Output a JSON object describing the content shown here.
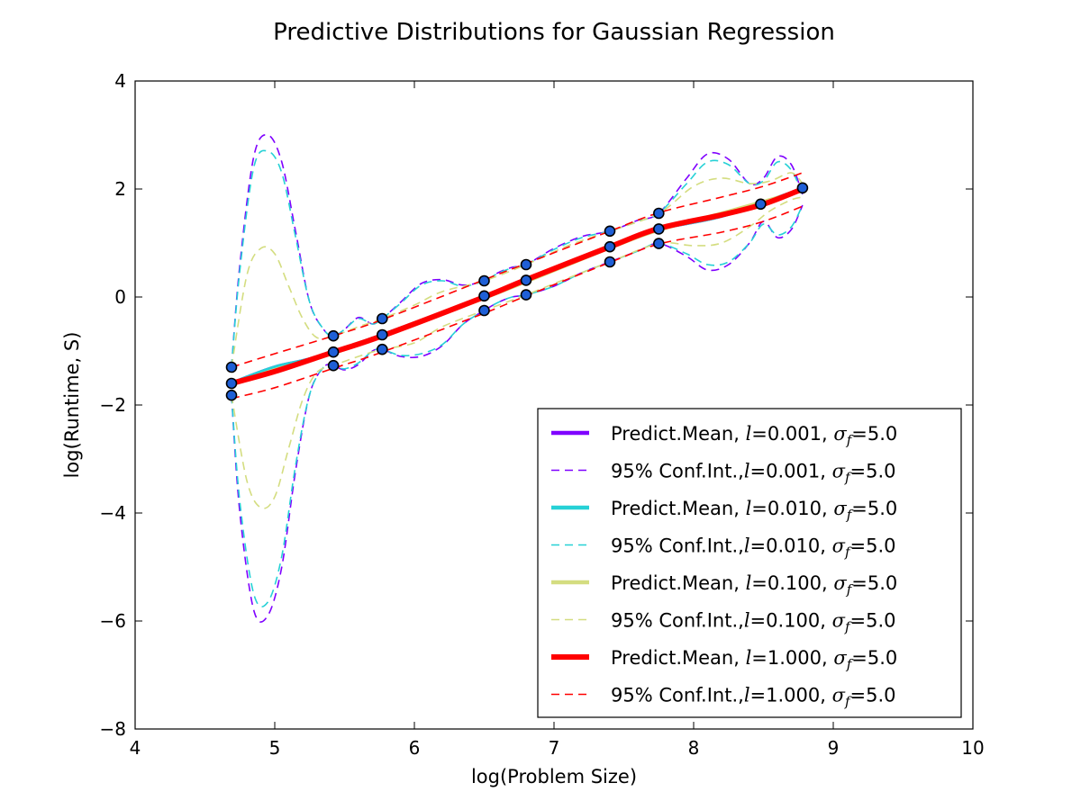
{
  "chart_data": {
    "type": "line",
    "title": "Predictive Distributions for Gaussian Regression",
    "xlabel": "log(Problem Size)",
    "ylabel": "log(Runtime, S)",
    "xlim": [
      4,
      10
    ],
    "ylim": [
      -8,
      4
    ],
    "xticks": [
      4,
      5,
      6,
      7,
      8,
      9,
      10
    ],
    "xtick_labels": [
      "4",
      "5",
      "6",
      "7",
      "8",
      "9",
      "10"
    ],
    "yticks": [
      -8,
      -6,
      -4,
      -2,
      0,
      2,
      4
    ],
    "ytick_labels": [
      "−8",
      "−6",
      "−4",
      "−2",
      "0",
      "2",
      "4"
    ],
    "grid": false,
    "legend_position": "lower-right",
    "observations": {
      "x": [
        4.69,
        4.69,
        4.69,
        5.42,
        5.42,
        5.42,
        5.77,
        5.77,
        5.77,
        6.5,
        6.5,
        6.5,
        6.8,
        6.8,
        6.8,
        7.4,
        7.4,
        7.4,
        7.75,
        7.75,
        7.75,
        8.48,
        8.78
      ],
      "y": [
        -1.3,
        -1.6,
        -1.82,
        -0.72,
        -1.02,
        -1.27,
        -0.4,
        -0.7,
        -0.97,
        0.3,
        0.02,
        -0.25,
        0.6,
        0.31,
        0.04,
        1.22,
        0.93,
        0.65,
        1.55,
        1.26,
        0.99,
        1.72,
        2.02
      ]
    },
    "series": [
      {
        "name": "Predict.Mean, l=0.001, σf=5.0",
        "legend_prefix": "Predict.Mean, ",
        "legend_mid": "=0.001, ",
        "legend_suffix": "=5.0",
        "color": "#7f00ff",
        "style": "solid",
        "x": [
          4.69,
          5.0,
          5.42,
          6.5,
          7.4,
          7.75,
          8.2,
          8.78
        ],
        "y": [
          -1.6,
          -1.3,
          -1.02,
          0.0,
          0.93,
          1.26,
          1.5,
          2.0
        ]
      },
      {
        "name": "95% Conf.Int.,l=0.001, σf=5.0",
        "legend_prefix": "95% Conf.Int.,",
        "legend_mid": "=0.001, ",
        "legend_suffix": "=5.0",
        "color": "#7f00ff",
        "style": "dashed",
        "upper": {
          "x": [
            4.69,
            4.75,
            4.85,
            4.95,
            5.05,
            5.15,
            5.25,
            5.35,
            5.42,
            5.5,
            5.6,
            5.7,
            5.77,
            5.9,
            6.05,
            6.2,
            6.35,
            6.5,
            6.6,
            6.7,
            6.8,
            7.0,
            7.2,
            7.4,
            7.6,
            7.75,
            7.95,
            8.1,
            8.25,
            8.4,
            8.5,
            8.6,
            8.7,
            8.78
          ],
          "y": [
            -1.3,
            0.6,
            2.6,
            3.0,
            2.5,
            1.2,
            -0.1,
            -0.6,
            -0.72,
            -0.6,
            -0.38,
            -0.5,
            -0.4,
            -0.1,
            0.25,
            0.32,
            0.22,
            0.3,
            0.45,
            0.55,
            0.6,
            0.9,
            1.12,
            1.22,
            1.42,
            1.55,
            2.2,
            2.65,
            2.55,
            2.1,
            2.2,
            2.6,
            2.45,
            1.9
          ]
        },
        "lower": {
          "x": [
            4.69,
            4.75,
            4.85,
            4.95,
            5.05,
            5.15,
            5.25,
            5.35,
            5.42,
            5.5,
            5.6,
            5.7,
            5.77,
            5.9,
            6.05,
            6.2,
            6.35,
            6.5,
            6.6,
            6.7,
            6.8,
            7.0,
            7.2,
            7.4,
            7.6,
            7.75,
            7.95,
            8.1,
            8.25,
            8.4,
            8.5,
            8.6,
            8.7,
            8.78
          ],
          "y": [
            -1.82,
            -4.0,
            -5.8,
            -5.9,
            -5.0,
            -3.2,
            -1.8,
            -1.3,
            -1.27,
            -1.35,
            -1.25,
            -1.0,
            -0.97,
            -1.1,
            -1.1,
            -0.9,
            -0.5,
            -0.25,
            -0.1,
            0.0,
            0.04,
            0.2,
            0.45,
            0.65,
            0.85,
            0.99,
            0.75,
            0.5,
            0.6,
            1.0,
            1.4,
            1.1,
            1.25,
            1.7
          ]
        }
      },
      {
        "name": "Predict.Mean, l=0.010, σf=5.0",
        "legend_prefix": "Predict.Mean, ",
        "legend_mid": "=0.010, ",
        "legend_suffix": "=5.0",
        "color": "#26d1d6",
        "style": "solid",
        "x": [
          4.69,
          5.0,
          5.42,
          6.5,
          7.4,
          7.75,
          8.2,
          8.78
        ],
        "y": [
          -1.6,
          -1.3,
          -1.02,
          0.0,
          0.93,
          1.26,
          1.5,
          2.0
        ]
      },
      {
        "name": "95% Conf.Int.,l=0.010, σf=5.0",
        "legend_prefix": "95% Conf.Int.,",
        "legend_mid": "=0.010, ",
        "legend_suffix": "=5.0",
        "color": "#26d1d6",
        "style": "dashed",
        "upper": {
          "x": [
            4.69,
            4.75,
            4.85,
            4.95,
            5.05,
            5.15,
            5.25,
            5.35,
            5.42,
            5.5,
            5.6,
            5.7,
            5.77,
            5.9,
            6.05,
            6.2,
            6.35,
            6.5,
            6.6,
            6.7,
            6.8,
            7.0,
            7.2,
            7.4,
            7.6,
            7.75,
            7.95,
            8.1,
            8.25,
            8.4,
            8.5,
            8.6,
            8.7,
            8.78
          ],
          "y": [
            -1.3,
            0.5,
            2.4,
            2.7,
            2.3,
            1.1,
            -0.1,
            -0.6,
            -0.72,
            -0.6,
            -0.4,
            -0.5,
            -0.4,
            -0.12,
            0.22,
            0.3,
            0.2,
            0.3,
            0.44,
            0.54,
            0.6,
            0.88,
            1.1,
            1.22,
            1.4,
            1.55,
            2.1,
            2.5,
            2.45,
            2.1,
            2.15,
            2.5,
            2.35,
            1.9
          ]
        },
        "lower": {
          "x": [
            4.69,
            4.75,
            4.85,
            4.95,
            5.05,
            5.15,
            5.25,
            5.35,
            5.42,
            5.5,
            5.6,
            5.7,
            5.77,
            5.9,
            6.05,
            6.2,
            6.35,
            6.5,
            6.6,
            6.7,
            6.8,
            7.0,
            7.2,
            7.4,
            7.6,
            7.75,
            7.95,
            8.1,
            8.25,
            8.4,
            8.5,
            8.6,
            8.7,
            8.78
          ],
          "y": [
            -1.82,
            -3.8,
            -5.5,
            -5.65,
            -4.8,
            -3.1,
            -1.8,
            -1.3,
            -1.27,
            -1.33,
            -1.22,
            -1.0,
            -0.97,
            -1.08,
            -1.05,
            -0.88,
            -0.5,
            -0.25,
            -0.1,
            0.0,
            0.04,
            0.2,
            0.45,
            0.65,
            0.85,
            0.99,
            0.8,
            0.6,
            0.65,
            1.0,
            1.35,
            1.15,
            1.3,
            1.7
          ]
        }
      },
      {
        "name": "Predict.Mean, l=0.100, σf=5.0",
        "legend_prefix": "Predict.Mean, ",
        "legend_mid": "=0.100, ",
        "legend_suffix": "=5.0",
        "color": "#d4dd80",
        "style": "solid",
        "x": [
          4.69,
          5.0,
          5.42,
          6.5,
          7.4,
          7.75,
          8.2,
          8.78
        ],
        "y": [
          -1.62,
          -1.35,
          -1.04,
          -0.02,
          0.91,
          1.24,
          1.55,
          1.97
        ]
      },
      {
        "name": "95% Conf.Int.,l=0.100, σf=5.0",
        "legend_prefix": "95% Conf.Int.,",
        "legend_mid": "=0.100, ",
        "legend_suffix": "=5.0",
        "color": "#d4dd80",
        "style": "dashed",
        "upper": {
          "x": [
            4.69,
            4.8,
            4.9,
            5.0,
            5.1,
            5.2,
            5.3,
            5.42,
            5.6,
            5.77,
            6.0,
            6.2,
            6.5,
            6.8,
            7.1,
            7.4,
            7.75,
            8.0,
            8.2,
            8.4,
            8.55,
            8.7,
            8.78
          ],
          "y": [
            -1.3,
            0.4,
            0.9,
            0.8,
            0.2,
            -0.4,
            -0.75,
            -0.72,
            -0.55,
            -0.4,
            -0.15,
            0.1,
            0.3,
            0.6,
            0.95,
            1.22,
            1.55,
            2.05,
            2.2,
            2.1,
            2.15,
            2.3,
            2.1
          ]
        },
        "lower": {
          "x": [
            4.69,
            4.8,
            4.9,
            5.0,
            5.1,
            5.2,
            5.3,
            5.42,
            5.6,
            5.77,
            6.0,
            6.2,
            6.5,
            6.8,
            7.1,
            7.4,
            7.75,
            8.0,
            8.2,
            8.4,
            8.55,
            8.7,
            8.78
          ],
          "y": [
            -1.82,
            -3.4,
            -3.9,
            -3.7,
            -2.8,
            -1.9,
            -1.4,
            -1.27,
            -1.1,
            -0.97,
            -0.85,
            -0.55,
            -0.25,
            0.04,
            0.35,
            0.65,
            0.99,
            0.95,
            1.0,
            1.3,
            1.6,
            1.8,
            1.85
          ]
        }
      },
      {
        "name": "Predict.Mean, l=1.000, σf=5.0",
        "legend_prefix": "Predict.Mean, ",
        "legend_mid": "=1.000, ",
        "legend_suffix": "=5.0",
        "color": "#ff0000",
        "style": "solid",
        "x": [
          4.69,
          5.0,
          5.42,
          5.77,
          6.5,
          6.8,
          7.4,
          7.75,
          8.2,
          8.5,
          8.78
        ],
        "y": [
          -1.6,
          -1.38,
          -1.02,
          -0.72,
          0.0,
          0.32,
          0.93,
          1.27,
          1.52,
          1.72,
          2.0
        ]
      },
      {
        "name": "95% Conf.Int.,l=1.000, σf=5.0",
        "legend_prefix": "95% Conf.Int.,",
        "legend_mid": "=1.000, ",
        "legend_suffix": "=5.0",
        "color": "#ff0000",
        "style": "dashed",
        "upper": {
          "x": [
            4.69,
            5.0,
            5.42,
            5.77,
            6.5,
            6.8,
            7.4,
            7.75,
            8.2,
            8.5,
            8.78
          ],
          "y": [
            -1.3,
            -1.05,
            -0.72,
            -0.42,
            0.32,
            0.62,
            1.22,
            1.56,
            1.85,
            2.05,
            2.3
          ]
        },
        "lower": {
          "x": [
            4.69,
            5.0,
            5.42,
            5.77,
            6.5,
            6.8,
            7.4,
            7.75,
            8.2,
            8.5,
            8.78
          ],
          "y": [
            -1.88,
            -1.68,
            -1.32,
            -1.02,
            -0.3,
            0.02,
            0.64,
            0.98,
            1.2,
            1.4,
            1.68
          ]
        }
      }
    ]
  }
}
